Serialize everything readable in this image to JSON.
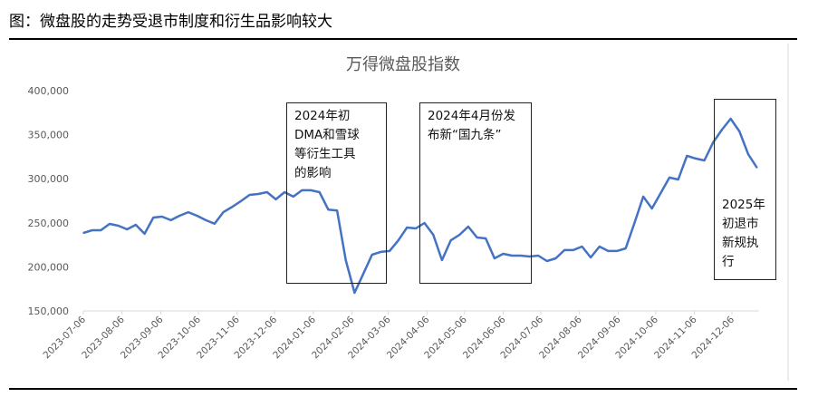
{
  "heading": "图：微盘股的走势受退市制度和衍生品影响较大",
  "chart_data": {
    "type": "line",
    "title": "万得微盘股指数",
    "xlabel": "",
    "ylabel": "",
    "ylim": [
      150000,
      400000
    ],
    "yticks": [
      "150,000",
      "200,000",
      "250,000",
      "300,000",
      "350,000",
      "400,000"
    ],
    "ytick_values": [
      150000,
      200000,
      250000,
      300000,
      350000,
      400000
    ],
    "xticks": [
      "2023-07-06",
      "2023-08-06",
      "2023-09-06",
      "2023-10-06",
      "2023-11-06",
      "2023-12-06",
      "2024-01-06",
      "2024-02-06",
      "2024-03-06",
      "2024-04-06",
      "2024-05-06",
      "2024-06-06",
      "2024-07-06",
      "2024-08-06",
      "2024-09-06",
      "2024-10-06",
      "2024-11-06",
      "2024-12-06"
    ],
    "grid": false,
    "line_color": "#4472C4",
    "x": [
      "2023-07-06",
      "2023-07-13",
      "2023-07-20",
      "2023-07-27",
      "2023-08-03",
      "2023-08-10",
      "2023-08-17",
      "2023-08-24",
      "2023-08-31",
      "2023-09-07",
      "2023-09-14",
      "2023-09-21",
      "2023-09-28",
      "2023-10-05",
      "2023-10-12",
      "2023-10-19",
      "2023-10-26",
      "2023-11-02",
      "2023-11-09",
      "2023-11-16",
      "2023-11-23",
      "2023-11-30",
      "2023-12-07",
      "2023-12-14",
      "2023-12-21",
      "2023-12-28",
      "2024-01-04",
      "2024-01-11",
      "2024-01-18",
      "2024-01-25",
      "2024-02-01",
      "2024-02-08",
      "2024-02-15",
      "2024-02-22",
      "2024-02-29",
      "2024-03-07",
      "2024-03-14",
      "2024-03-21",
      "2024-03-28",
      "2024-04-04",
      "2024-04-11",
      "2024-04-18",
      "2024-04-25",
      "2024-05-02",
      "2024-05-09",
      "2024-05-16",
      "2024-05-23",
      "2024-05-30",
      "2024-06-06",
      "2024-06-13",
      "2024-06-20",
      "2024-06-27",
      "2024-07-04",
      "2024-07-11",
      "2024-07-18",
      "2024-07-25",
      "2024-08-01",
      "2024-08-08",
      "2024-08-15",
      "2024-08-22",
      "2024-08-29",
      "2024-09-05",
      "2024-09-12",
      "2024-09-19",
      "2024-09-26",
      "2024-10-03",
      "2024-10-10",
      "2024-10-17",
      "2024-10-24",
      "2024-10-31",
      "2024-11-07",
      "2024-11-14",
      "2024-11-21",
      "2024-11-28",
      "2024-12-05",
      "2024-12-12",
      "2024-12-19",
      "2024-12-26"
    ],
    "values": [
      238500,
      241600,
      241600,
      248800,
      246700,
      242600,
      247700,
      237500,
      256000,
      257000,
      253000,
      258000,
      262000,
      258000,
      253000,
      249000,
      262000,
      268000,
      274500,
      281700,
      282700,
      284800,
      276600,
      284800,
      279700,
      286900,
      286900,
      284800,
      265000,
      264000,
      207600,
      170600,
      192000,
      213800,
      217000,
      218000,
      230000,
      244700,
      243600,
      249800,
      236400,
      207600,
      230000,
      236400,
      245700,
      233300,
      232300,
      209700,
      214800,
      212800,
      212800,
      211700,
      212800,
      206600,
      209700,
      219000,
      219000,
      223000,
      210700,
      223000,
      218000,
      218000,
      221000,
      249800,
      279700,
      266300,
      283800,
      301300,
      299200,
      326000,
      322900,
      320800,
      341400,
      355800,
      368100,
      353700,
      328000,
      312600
    ],
    "annotations": [
      {
        "lines": [
          "2024年初",
          "DMA和雪球",
          "等衍生工具",
          "的影响"
        ]
      },
      {
        "lines": [
          "2024年4月份发",
          "布新“国九条”"
        ]
      },
      {
        "lines": [
          "2025年",
          "初退市",
          "新规执",
          "行"
        ]
      }
    ]
  }
}
